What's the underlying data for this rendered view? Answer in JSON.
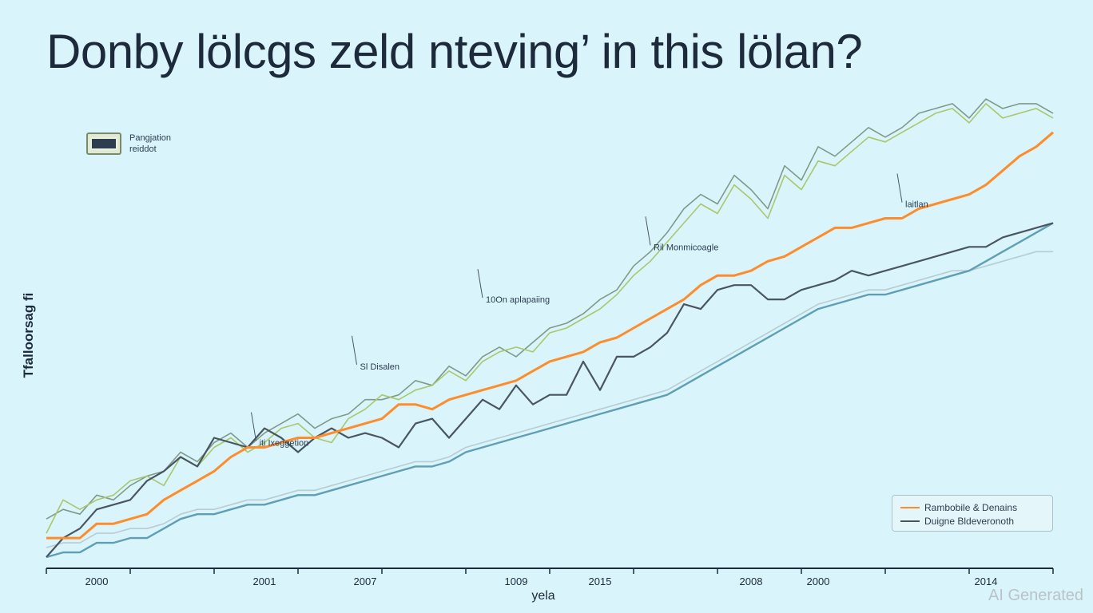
{
  "title": "Donby lölcgs zeld nteving’ in this lölan?",
  "watermark": "AI Generated",
  "top_legend": {
    "icon": "panel-swatch-icon",
    "line1": "Pangjation",
    "line2": "reiddot"
  },
  "bottom_legend": {
    "items": [
      {
        "label": "Rambobile & Denains",
        "color": "#ff8c2a"
      },
      {
        "label": "Duigne Bldeveronoth",
        "color": "#4a5560"
      }
    ]
  },
  "chart_data": {
    "type": "line",
    "title": "Donby lölcgs zeld nteving’ in this lölan?",
    "xlabel": "yela",
    "ylabel": "Tfalloorsag fi",
    "x": [
      0,
      1,
      2,
      3,
      4,
      5,
      6,
      7,
      8,
      9,
      10,
      11,
      12,
      13,
      14,
      15,
      16,
      17,
      18,
      19,
      20,
      21,
      22,
      23,
      24,
      25,
      26,
      27,
      28,
      29,
      30,
      31,
      32,
      33,
      34,
      35,
      36,
      37,
      38,
      39,
      40,
      41,
      42,
      43,
      44,
      45,
      46,
      47,
      48,
      49,
      50,
      51,
      52,
      53,
      54,
      55,
      56,
      57,
      58,
      59,
      60
    ],
    "xlim": [
      0,
      60
    ],
    "ylim": [
      0,
      100
    ],
    "x_tick_labels": [
      {
        "pos": 3,
        "label": "2000"
      },
      {
        "pos": 13,
        "label": "2001"
      },
      {
        "pos": 19,
        "label": "2007"
      },
      {
        "pos": 28,
        "label": "1009"
      },
      {
        "pos": 33,
        "label": "2015"
      },
      {
        "pos": 42,
        "label": "2008"
      },
      {
        "pos": 46,
        "label": "2000"
      },
      {
        "pos": 56,
        "label": "2014"
      }
    ],
    "grid": false,
    "legend": "bottom-right",
    "series": [
      {
        "name": "Rambobile & Denains",
        "color": "#ff8c2a",
        "values": [
          6,
          6,
          6,
          9,
          9,
          10,
          11,
          14,
          16,
          18,
          20,
          23,
          25,
          25,
          26,
          27,
          27,
          28,
          29,
          30,
          31,
          34,
          34,
          33,
          35,
          36,
          37,
          38,
          39,
          41,
          43,
          44,
          45,
          47,
          48,
          50,
          52,
          54,
          56,
          59,
          61,
          61,
          62,
          64,
          65,
          67,
          69,
          71,
          71,
          72,
          73,
          73,
          75,
          76,
          77,
          78,
          80,
          83,
          86,
          88,
          91
        ]
      },
      {
        "name": "Duigne Bldeveronoth",
        "color": "#4a5560",
        "values": [
          2,
          6,
          8,
          12,
          13,
          14,
          18,
          20,
          23,
          21,
          27,
          26,
          25,
          29,
          27,
          24,
          27,
          29,
          27,
          28,
          27,
          25,
          30,
          31,
          27,
          31,
          35,
          33,
          38,
          34,
          36,
          36,
          43,
          37,
          44,
          44,
          46,
          49,
          55,
          54,
          58,
          59,
          59,
          56,
          56,
          58,
          59,
          60,
          62,
          61,
          62,
          63,
          64,
          65,
          66,
          67,
          67,
          69,
          70,
          71,
          72
        ]
      },
      {
        "color": "#a9c76b",
        "values": [
          7,
          14,
          12,
          14,
          15,
          18,
          19,
          17,
          23,
          21,
          25,
          27,
          24,
          26,
          29,
          30,
          27,
          26,
          31,
          33,
          36,
          35,
          37,
          38,
          41,
          39,
          43,
          45,
          46,
          45,
          49,
          50,
          52,
          54,
          57,
          61,
          64,
          68,
          72,
          76,
          74,
          80,
          77,
          73,
          82,
          79,
          85,
          84,
          87,
          90,
          89,
          91,
          93,
          95,
          96,
          93,
          97,
          94,
          95,
          96,
          94
        ]
      },
      {
        "color": "#7f9a8a",
        "values": [
          10,
          12,
          11,
          15,
          14,
          17,
          19,
          20,
          24,
          22,
          26,
          28,
          25,
          28,
          30,
          32,
          29,
          31,
          32,
          35,
          35,
          36,
          39,
          38,
          42,
          40,
          44,
          46,
          44,
          47,
          50,
          51,
          53,
          56,
          58,
          63,
          66,
          70,
          75,
          78,
          76,
          82,
          79,
          75,
          84,
          81,
          88,
          86,
          89,
          92,
          90,
          92,
          95,
          96,
          97,
          94,
          98,
          96,
          97,
          97,
          95
        ]
      },
      {
        "color": "#5f9fb5",
        "values": [
          2,
          3,
          3,
          5,
          5,
          6,
          6,
          8,
          10,
          11,
          11,
          12,
          13,
          13,
          14,
          15,
          15,
          16,
          17,
          18,
          19,
          20,
          21,
          21,
          22,
          24,
          25,
          26,
          27,
          28,
          29,
          30,
          31,
          32,
          33,
          34,
          35,
          36,
          38,
          40,
          42,
          44,
          46,
          48,
          50,
          52,
          54,
          55,
          56,
          57,
          57,
          58,
          59,
          60,
          61,
          62,
          64,
          66,
          68,
          70,
          72
        ]
      },
      {
        "color": "#b8ccd6",
        "values": [
          4,
          5,
          5,
          7,
          7,
          8,
          8,
          9,
          11,
          12,
          12,
          13,
          14,
          14,
          15,
          16,
          16,
          17,
          18,
          19,
          20,
          21,
          22,
          22,
          23,
          25,
          26,
          27,
          28,
          29,
          30,
          31,
          32,
          33,
          34,
          35,
          36,
          37,
          39,
          41,
          43,
          45,
          47,
          49,
          51,
          53,
          55,
          56,
          57,
          58,
          58,
          59,
          60,
          61,
          62,
          62,
          63,
          64,
          65,
          66,
          66
        ]
      }
    ],
    "annotations": [
      {
        "x": 12.5,
        "y": 26,
        "text": "iti Ixeggetion"
      },
      {
        "x": 18.5,
        "y": 42,
        "text": "Sl Disalen"
      },
      {
        "x": 26,
        "y": 56,
        "text": "10On aplapaiing"
      },
      {
        "x": 36,
        "y": 67,
        "text": "Ril Monmicoagle"
      },
      {
        "x": 51,
        "y": 76,
        "text": "laitlan"
      }
    ]
  }
}
